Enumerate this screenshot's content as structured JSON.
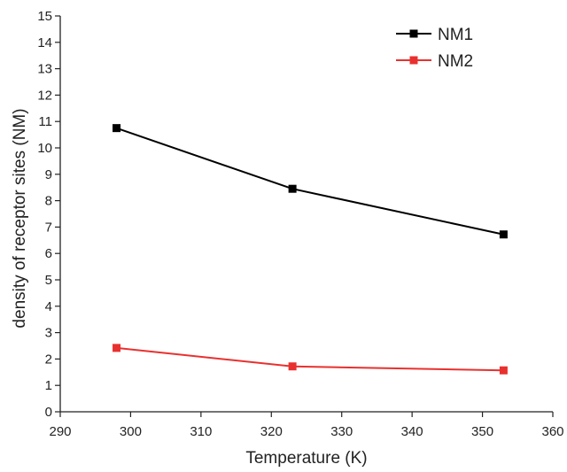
{
  "chart_data": {
    "type": "line",
    "title": "",
    "xlabel": "Temperature (K)",
    "ylabel": "density of receptor sites (NM)",
    "xlim": [
      290,
      360
    ],
    "ylim": [
      0,
      15
    ],
    "xticks": [
      290,
      300,
      310,
      320,
      330,
      340,
      350,
      360
    ],
    "yticks": [
      0,
      1,
      2,
      3,
      4,
      5,
      6,
      7,
      8,
      9,
      10,
      11,
      12,
      13,
      14,
      15
    ],
    "grid": false,
    "legend_position": "top-right",
    "series": [
      {
        "name": "NM1",
        "color": "#000000",
        "marker": "square",
        "x": [
          298,
          323,
          353
        ],
        "y": [
          10.75,
          8.45,
          6.72
        ]
      },
      {
        "name": "NM2",
        "color": "#e8312f",
        "marker": "square",
        "x": [
          298,
          323,
          353
        ],
        "y": [
          2.42,
          1.72,
          1.57
        ]
      }
    ]
  }
}
